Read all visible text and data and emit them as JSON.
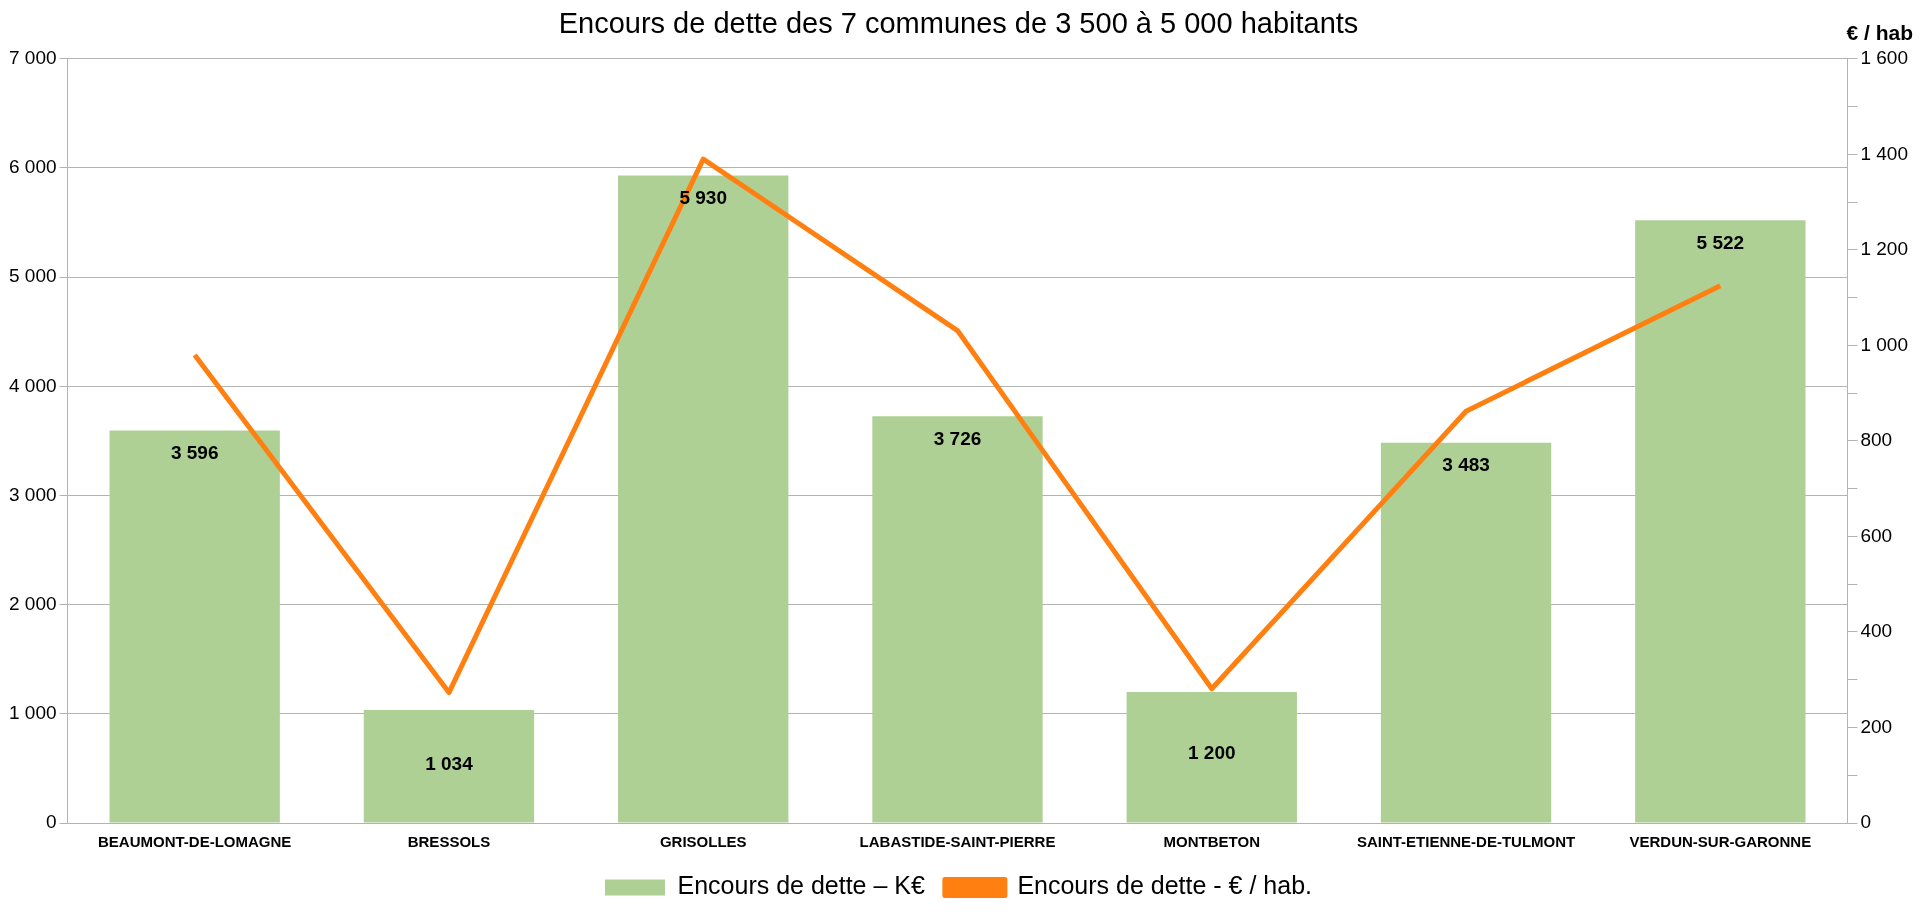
{
  "chart_data": {
    "type": "bar",
    "title": "Encours de dette des 7 communes de 3 500 à 5 000 habitants",
    "y2label": "€ / hab",
    "categories": [
      "BEAUMONT-DE-LOMAGNE",
      "BRESSOLS",
      "GRISOLLES",
      "LABASTIDE-SAINT-PIERRE",
      "MONTBETON",
      "SAINT-ETIENNE-DE-TULMONT",
      "VERDUN-SUR-GARONNE"
    ],
    "series": [
      {
        "name": "Encours de dette – K€",
        "color": "#afd095",
        "values": [
          3596,
          1034,
          5930,
          3726,
          1200,
          3483,
          5522
        ],
        "value_labels": [
          "3 596",
          "1 034",
          "5 930",
          "3 726",
          "1 200",
          "3 483",
          "5 522"
        ]
      },
      {
        "name": "Encours de dette - € / hab.",
        "type": "line",
        "axis": "y2",
        "color": "#ff8011",
        "marker": "none",
        "line_style": "solid",
        "values": [
          980,
          273,
          1390,
          1031,
          281,
          862,
          1125
        ]
      }
    ],
    "ylim": [
      0,
      7000
    ],
    "yticks": [
      {
        "value": 0,
        "label": "0"
      },
      {
        "value": 1000,
        "label": "1 000"
      },
      {
        "value": 2000,
        "label": "2 000"
      },
      {
        "value": 3000,
        "label": "3 000"
      },
      {
        "value": 4000,
        "label": "4 000"
      },
      {
        "value": 5000,
        "label": "5 000"
      },
      {
        "value": 6000,
        "label": "6 000"
      },
      {
        "value": 7000,
        "label": "7 000"
      }
    ],
    "y2lim": [
      0,
      1600
    ],
    "y2ticks": [
      {
        "value": 0,
        "label": "0"
      },
      {
        "value": 100,
        "label": null
      },
      {
        "value": 200,
        "label": "200"
      },
      {
        "value": 300,
        "label": null
      },
      {
        "value": 400,
        "label": "400"
      },
      {
        "value": 500,
        "label": null
      },
      {
        "value": 600,
        "label": "600"
      },
      {
        "value": 700,
        "label": null
      },
      {
        "value": 800,
        "label": "800"
      },
      {
        "value": 900,
        "label": null
      },
      {
        "value": 1000,
        "label": "1 000"
      },
      {
        "value": 1100,
        "label": null
      },
      {
        "value": 1200,
        "label": "1 200"
      },
      {
        "value": 1300,
        "label": null
      },
      {
        "value": 1400,
        "label": "1 400"
      },
      {
        "value": 1500,
        "label": null
      },
      {
        "value": 1600,
        "label": "1 600"
      }
    ],
    "grid": "y",
    "legend": "bottom"
  }
}
